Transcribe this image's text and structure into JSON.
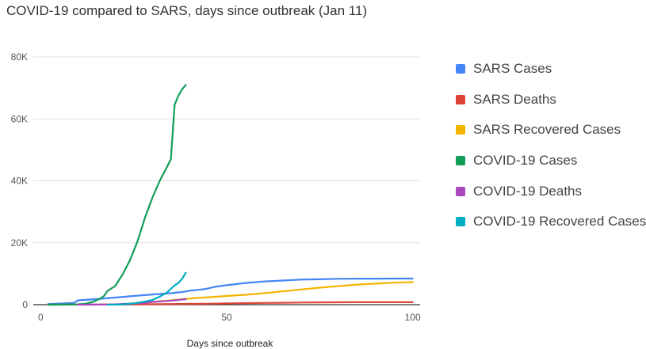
{
  "chart_data": {
    "type": "line",
    "title": "COVID-19 compared to SARS, days since outbreak (Jan 11)",
    "xlabel": "Days since outbreak",
    "ylabel": "",
    "xlim": [
      -2,
      102
    ],
    "ylim": [
      0,
      80000
    ],
    "x_ticks": [
      "0",
      "50",
      "100"
    ],
    "y_ticks": [
      "0",
      "20K",
      "40K",
      "60K",
      "80K"
    ],
    "grid": true,
    "legend_position": "right",
    "series": [
      {
        "name": "SARS Cases",
        "color": "#4285f4",
        "points": [
          [
            2,
            200
          ],
          [
            9,
            600
          ],
          [
            10,
            1400
          ],
          [
            15,
            1800
          ],
          [
            20,
            2300
          ],
          [
            25,
            2800
          ],
          [
            30,
            3300
          ],
          [
            35,
            3700
          ],
          [
            38,
            4100
          ],
          [
            40,
            4500
          ],
          [
            44,
            5000
          ],
          [
            47,
            5800
          ],
          [
            50,
            6300
          ],
          [
            55,
            7000
          ],
          [
            60,
            7500
          ],
          [
            65,
            7800
          ],
          [
            70,
            8100
          ],
          [
            75,
            8200
          ],
          [
            80,
            8350
          ],
          [
            85,
            8400
          ],
          [
            90,
            8420
          ],
          [
            95,
            8430
          ],
          [
            100,
            8440
          ]
        ]
      },
      {
        "name": "SARS Deaths",
        "color": "#db4437",
        "points": [
          [
            2,
            10
          ],
          [
            15,
            40
          ],
          [
            25,
            100
          ],
          [
            30,
            150
          ],
          [
            35,
            200
          ],
          [
            40,
            250
          ],
          [
            45,
            300
          ],
          [
            50,
            420
          ],
          [
            55,
            480
          ],
          [
            60,
            560
          ],
          [
            65,
            620
          ],
          [
            70,
            680
          ],
          [
            75,
            730
          ],
          [
            80,
            760
          ],
          [
            85,
            780
          ],
          [
            90,
            790
          ],
          [
            95,
            795
          ],
          [
            100,
            800
          ]
        ]
      },
      {
        "name": "SARS Recovered Cases",
        "color": "#f4b400",
        "points": [
          [
            26,
            500
          ],
          [
            30,
            900
          ],
          [
            35,
            1400
          ],
          [
            40,
            2000
          ],
          [
            45,
            2400
          ],
          [
            50,
            2800
          ],
          [
            55,
            3200
          ],
          [
            60,
            3700
          ],
          [
            65,
            4300
          ],
          [
            70,
            4900
          ],
          [
            75,
            5500
          ],
          [
            80,
            6000
          ],
          [
            85,
            6500
          ],
          [
            90,
            6800
          ],
          [
            95,
            7100
          ],
          [
            100,
            7300
          ]
        ]
      },
      {
        "name": "COVID-19 Cases",
        "color": "#0f9d58",
        "points": [
          [
            2,
            0
          ],
          [
            10,
            100
          ],
          [
            12,
            300
          ],
          [
            14,
            900
          ],
          [
            16,
            2000
          ],
          [
            17,
            2800
          ],
          [
            18,
            4500
          ],
          [
            20,
            6000
          ],
          [
            22,
            9700
          ],
          [
            24,
            14400
          ],
          [
            26,
            20400
          ],
          [
            28,
            28000
          ],
          [
            30,
            34500
          ],
          [
            32,
            40000
          ],
          [
            34,
            44600
          ],
          [
            35,
            47000
          ],
          [
            36,
            64500
          ],
          [
            37,
            67500
          ],
          [
            38,
            69500
          ],
          [
            39,
            71000
          ]
        ]
      },
      {
        "name": "COVID-19 Deaths",
        "color": "#ab47bc",
        "points": [
          [
            10,
            0
          ],
          [
            15,
            20
          ],
          [
            20,
            100
          ],
          [
            25,
            400
          ],
          [
            28,
            600
          ],
          [
            30,
            900
          ],
          [
            33,
            1100
          ],
          [
            36,
            1400
          ],
          [
            38,
            1650
          ],
          [
            39,
            1800
          ]
        ]
      },
      {
        "name": "COVID-19 Recovered Cases",
        "color": "#00acc1",
        "points": [
          [
            18,
            0
          ],
          [
            22,
            100
          ],
          [
            25,
            400
          ],
          [
            28,
            1000
          ],
          [
            30,
            1500
          ],
          [
            32,
            2600
          ],
          [
            34,
            4000
          ],
          [
            35,
            5100
          ],
          [
            36,
            6200
          ],
          [
            37,
            7000
          ],
          [
            38,
            8300
          ],
          [
            39,
            10300
          ]
        ]
      }
    ]
  }
}
